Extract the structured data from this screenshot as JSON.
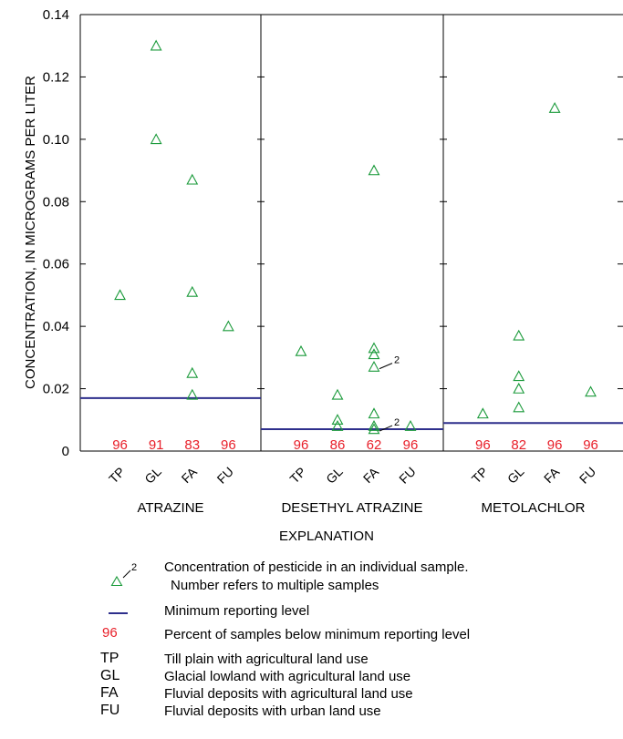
{
  "chart_data": {
    "type": "scatter",
    "ylabel": "CONCENTRATION, IN MICROGRAMS PER LITER",
    "ylim": [
      0,
      0.14
    ],
    "yticks": [
      "0",
      "0.02",
      "0.04",
      "0.06",
      "0.08",
      "0.10",
      "0.12",
      "0.14"
    ],
    "yticks_values": [
      0,
      0.02,
      0.04,
      0.06,
      0.08,
      0.1,
      0.12,
      0.14
    ],
    "categories": [
      "TP",
      "GL",
      "FA",
      "FU"
    ],
    "colors": {
      "points": "#1a9a3a",
      "mrl": "#2e2f8c",
      "percent": "#e8202a"
    },
    "panels": [
      {
        "title": "ATRAZINE",
        "mrl": 0.017,
        "percent_below": [
          "96",
          "91",
          "83",
          "96"
        ],
        "points": [
          {
            "cat": "TP",
            "y": 0.05
          },
          {
            "cat": "GL",
            "y": 0.13
          },
          {
            "cat": "GL",
            "y": 0.1
          },
          {
            "cat": "FA",
            "y": 0.087
          },
          {
            "cat": "FA",
            "y": 0.051
          },
          {
            "cat": "FA",
            "y": 0.025
          },
          {
            "cat": "FA",
            "y": 0.018
          },
          {
            "cat": "FU",
            "y": 0.04
          }
        ],
        "annotations": []
      },
      {
        "title": "DESETHYL ATRAZINE",
        "mrl": 0.007,
        "percent_below": [
          "96",
          "86",
          "62",
          "96"
        ],
        "points": [
          {
            "cat": "TP",
            "y": 0.032
          },
          {
            "cat": "GL",
            "y": 0.018
          },
          {
            "cat": "GL",
            "y": 0.01
          },
          {
            "cat": "GL",
            "y": 0.008
          },
          {
            "cat": "FA",
            "y": 0.09
          },
          {
            "cat": "FA",
            "y": 0.033
          },
          {
            "cat": "FA",
            "y": 0.031
          },
          {
            "cat": "FA",
            "y": 0.027
          },
          {
            "cat": "FA",
            "y": 0.012
          },
          {
            "cat": "FA",
            "y": 0.008
          },
          {
            "cat": "FA",
            "y": 0.007
          },
          {
            "cat": "FU",
            "y": 0.008
          }
        ],
        "annotations": [
          {
            "cat": "FA",
            "y": 0.027,
            "text": "2"
          },
          {
            "cat": "FA",
            "y": 0.007,
            "text": "2"
          }
        ]
      },
      {
        "title": "METOLACHLOR",
        "mrl": 0.009,
        "percent_below": [
          "96",
          "82",
          "96",
          "96"
        ],
        "points": [
          {
            "cat": "TP",
            "y": 0.012
          },
          {
            "cat": "GL",
            "y": 0.037
          },
          {
            "cat": "GL",
            "y": 0.024
          },
          {
            "cat": "GL",
            "y": 0.02
          },
          {
            "cat": "GL",
            "y": 0.014
          },
          {
            "cat": "FA",
            "y": 0.11
          },
          {
            "cat": "FU",
            "y": 0.019
          }
        ],
        "annotations": []
      }
    ]
  },
  "legend": {
    "heading": "EXPLANATION",
    "sample_sup": "2",
    "sample_line1": "Concentration of pesticide in an individual sample.",
    "sample_line2": "Number refers to multiple samples",
    "mrl_text": "Minimum reporting level",
    "pct_symbol": "96",
    "pct_text": "Percent of samples below minimum reporting level",
    "abbreviations": [
      {
        "code": "TP",
        "text": "Till plain with agricultural land use"
      },
      {
        "code": "GL",
        "text": "Glacial lowland with agricultural land use"
      },
      {
        "code": "FA",
        "text": "Fluvial deposits with agricultural land use"
      },
      {
        "code": "FU",
        "text": "Fluvial deposits with urban land use"
      }
    ]
  }
}
